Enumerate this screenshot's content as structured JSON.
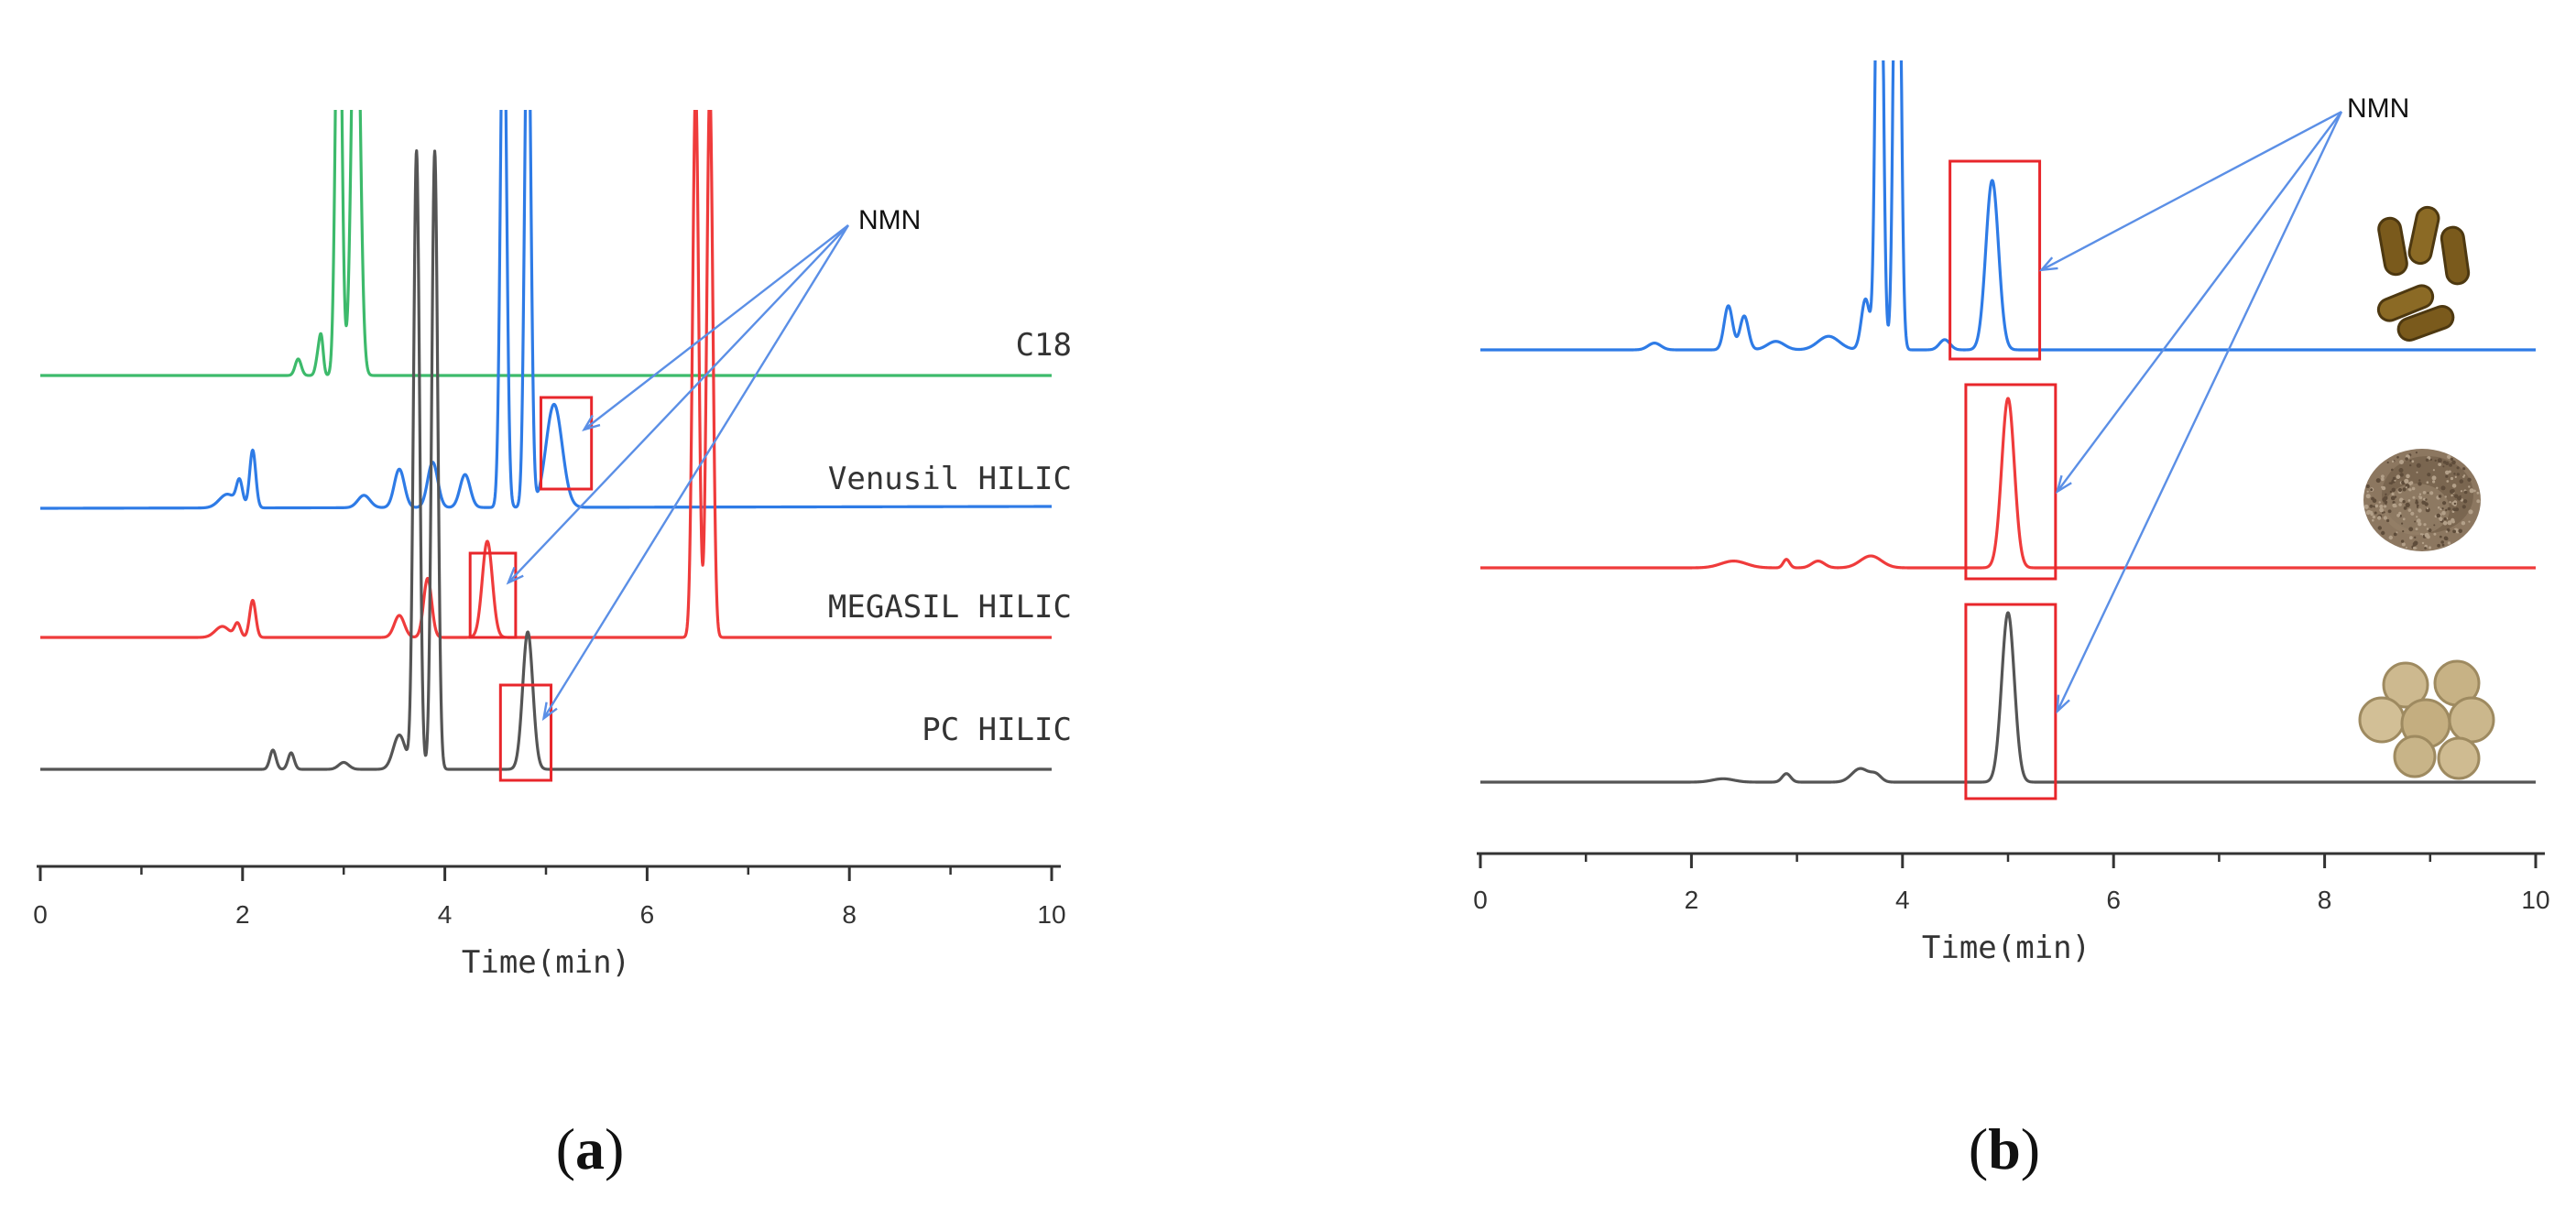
{
  "chart_data": [
    {
      "panel": "a",
      "panel_label": "(a)",
      "panel_letter": "a",
      "type": "line",
      "title": "",
      "xlabel": "Time(min)",
      "ylabel": "",
      "xlim": [
        0,
        10
      ],
      "xticks": [
        "0",
        "2",
        "4",
        "6",
        "8",
        "10"
      ],
      "annotation": "NMN",
      "series": [
        {
          "name": "C18",
          "color": "#3dba6b",
          "peaks": [
            {
              "t": 2.55,
              "h": 0.12,
              "w": 0.03
            },
            {
              "t": 2.75,
              "h": 0.15,
              "w": 0.025
            },
            {
              "t": 2.78,
              "h": 0.22,
              "w": 0.02
            },
            {
              "t": 2.95,
              "h": 3.5,
              "w": 0.03
            },
            {
              "t": 3.12,
              "h": 3.5,
              "w": 0.04
            }
          ],
          "nmn_box": null
        },
        {
          "name": "Venusil HILIC",
          "color": "#2e7be6",
          "peaks": [
            {
              "t": 1.85,
              "h": 0.1,
              "w": 0.08
            },
            {
              "t": 1.97,
              "h": 0.18,
              "w": 0.03
            },
            {
              "t": 2.1,
              "h": 0.42,
              "w": 0.03
            },
            {
              "t": 3.2,
              "h": 0.09,
              "w": 0.06
            },
            {
              "t": 3.55,
              "h": 0.28,
              "w": 0.05
            },
            {
              "t": 3.88,
              "h": 0.33,
              "w": 0.05
            },
            {
              "t": 4.2,
              "h": 0.24,
              "w": 0.05
            },
            {
              "t": 4.58,
              "h": 4.0,
              "w": 0.03
            },
            {
              "t": 4.82,
              "h": 4.0,
              "w": 0.03
            },
            {
              "t": 5.08,
              "h": 0.75,
              "w": 0.08
            }
          ],
          "nmn_box": [
            4.95,
            5.45
          ]
        },
        {
          "name": "MEGASIL HILIC",
          "color": "#ef3b3b",
          "peaks": [
            {
              "t": 1.8,
              "h": 0.08,
              "w": 0.07
            },
            {
              "t": 1.95,
              "h": 0.1,
              "w": 0.03
            },
            {
              "t": 2.1,
              "h": 0.27,
              "w": 0.03
            },
            {
              "t": 3.55,
              "h": 0.16,
              "w": 0.05
            },
            {
              "t": 3.83,
              "h": 0.43,
              "w": 0.04
            },
            {
              "t": 4.42,
              "h": 0.7,
              "w": 0.05
            },
            {
              "t": 6.48,
              "h": 4.0,
              "w": 0.03
            },
            {
              "t": 6.62,
              "h": 4.0,
              "w": 0.03
            }
          ],
          "nmn_box": [
            4.25,
            4.7
          ]
        },
        {
          "name": "PC HILIC",
          "color": "#555555",
          "peaks": [
            {
              "t": 2.3,
              "h": 0.14,
              "w": 0.03
            },
            {
              "t": 2.48,
              "h": 0.12,
              "w": 0.03
            },
            {
              "t": 3.0,
              "h": 0.05,
              "w": 0.05
            },
            {
              "t": 3.55,
              "h": 0.25,
              "w": 0.06
            },
            {
              "t": 3.72,
              "h": 4.5,
              "w": 0.03
            },
            {
              "t": 3.9,
              "h": 4.5,
              "w": 0.03
            },
            {
              "t": 4.82,
              "h": 1.0,
              "w": 0.05
            }
          ],
          "nmn_box": [
            4.55,
            5.05
          ]
        }
      ]
    },
    {
      "panel": "b",
      "panel_label": "(b)",
      "panel_letter": "b",
      "type": "line",
      "title": "",
      "xlabel": "Time(min)",
      "ylabel": "",
      "xlim": [
        0,
        10
      ],
      "xticks": [
        "0",
        "2",
        "4",
        "6",
        "8",
        "10"
      ],
      "annotation": "NMN",
      "series": [
        {
          "name": "capsule sample",
          "icon": "capsule-icon",
          "color": "#2e7be6",
          "peaks": [
            {
              "t": 1.65,
              "h": 0.04,
              "w": 0.06
            },
            {
              "t": 2.35,
              "h": 0.26,
              "w": 0.04
            },
            {
              "t": 2.5,
              "h": 0.2,
              "w": 0.04
            },
            {
              "t": 2.8,
              "h": 0.05,
              "w": 0.08
            },
            {
              "t": 3.3,
              "h": 0.08,
              "w": 0.1
            },
            {
              "t": 3.65,
              "h": 0.3,
              "w": 0.04
            },
            {
              "t": 3.78,
              "h": 4.0,
              "w": 0.03
            },
            {
              "t": 3.95,
              "h": 4.0,
              "w": 0.03
            },
            {
              "t": 4.4,
              "h": 0.06,
              "w": 0.05
            },
            {
              "t": 4.85,
              "h": 1.0,
              "w": 0.06
            }
          ],
          "nmn_box": [
            4.45,
            5.3
          ]
        },
        {
          "name": "powder sample",
          "icon": "powder-icon",
          "color": "#ef3b3b",
          "peaks": [
            {
              "t": 2.4,
              "h": 0.04,
              "w": 0.12
            },
            {
              "t": 2.9,
              "h": 0.05,
              "w": 0.03
            },
            {
              "t": 3.2,
              "h": 0.04,
              "w": 0.06
            },
            {
              "t": 3.7,
              "h": 0.07,
              "w": 0.1
            },
            {
              "t": 5.0,
              "h": 1.0,
              "w": 0.06
            }
          ],
          "nmn_box": [
            4.6,
            5.45
          ]
        },
        {
          "name": "tablet sample",
          "icon": "tablet-icon",
          "color": "#555555",
          "peaks": [
            {
              "t": 2.3,
              "h": 0.02,
              "w": 0.1
            },
            {
              "t": 2.9,
              "h": 0.05,
              "w": 0.04
            },
            {
              "t": 3.6,
              "h": 0.08,
              "w": 0.08
            },
            {
              "t": 3.75,
              "h": 0.04,
              "w": 0.05
            },
            {
              "t": 5.0,
              "h": 1.0,
              "w": 0.06
            }
          ],
          "nmn_box": [
            4.6,
            5.45
          ]
        }
      ]
    }
  ]
}
